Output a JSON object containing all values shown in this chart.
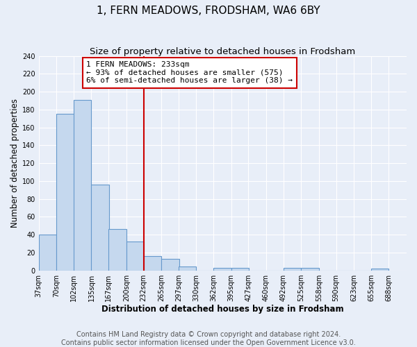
{
  "title": "1, FERN MEADOWS, FRODSHAM, WA6 6BY",
  "subtitle": "Size of property relative to detached houses in Frodsham",
  "xlabel": "Distribution of detached houses by size in Frodsham",
  "ylabel": "Number of detached properties",
  "footer_line1": "Contains HM Land Registry data © Crown copyright and database right 2024.",
  "footer_line2": "Contains public sector information licensed under the Open Government Licence v3.0.",
  "bin_labels": [
    "37sqm",
    "70sqm",
    "102sqm",
    "135sqm",
    "167sqm",
    "200sqm",
    "232sqm",
    "265sqm",
    "297sqm",
    "330sqm",
    "362sqm",
    "395sqm",
    "427sqm",
    "460sqm",
    "492sqm",
    "525sqm",
    "558sqm",
    "590sqm",
    "623sqm",
    "655sqm",
    "688sqm"
  ],
  "bin_edges": [
    37,
    70,
    102,
    135,
    167,
    200,
    232,
    265,
    297,
    330,
    362,
    395,
    427,
    460,
    492,
    525,
    558,
    590,
    623,
    655,
    688
  ],
  "bin_width": 33,
  "bar_heights": [
    40,
    175,
    191,
    96,
    46,
    32,
    16,
    13,
    4,
    0,
    3,
    3,
    0,
    0,
    3,
    3,
    0,
    0,
    0,
    2
  ],
  "bar_color": "#c5d8ee",
  "bar_edge_color": "#6699cc",
  "property_value": 233,
  "red_line_color": "#cc0000",
  "annotation_text": "1 FERN MEADOWS: 233sqm\n← 93% of detached houses are smaller (575)\n6% of semi-detached houses are larger (38) →",
  "ylim": [
    0,
    240
  ],
  "yticks": [
    0,
    20,
    40,
    60,
    80,
    100,
    120,
    140,
    160,
    180,
    200,
    220,
    240
  ],
  "background_color": "#e8eef8",
  "grid_color": "#ffffff",
  "title_fontsize": 11,
  "subtitle_fontsize": 9.5,
  "axis_label_fontsize": 8.5,
  "tick_fontsize": 7,
  "annotation_fontsize": 8,
  "footer_fontsize": 7
}
